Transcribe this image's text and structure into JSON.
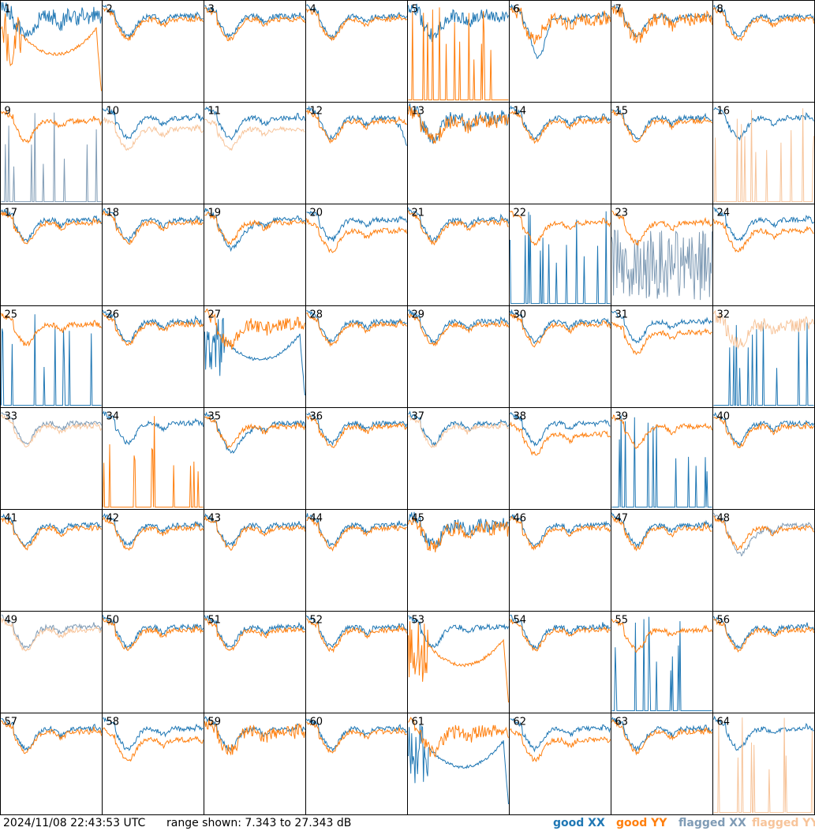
{
  "footer": {
    "timestamp": "2024/11/08 22:43:53 UTC",
    "range_text": "range shown: 7.343 to 27.343 dB",
    "legend": {
      "good_xx": "good XX",
      "good_yy": "good YY",
      "flagged_xx": "flagged XX",
      "flagged_yy": "flagged YY"
    }
  },
  "colors": {
    "good_xx": "#1f77b4",
    "good_yy": "#ff7f0e",
    "flagged_xx": "#7f9bb5",
    "flagged_yy": "#f7c49a",
    "frame": "#000000"
  },
  "chart_data": {
    "type": "line",
    "layout": "small-multiples",
    "rows": 8,
    "cols": 8,
    "ylim": [
      7.343,
      27.343
    ],
    "yunit": "dB",
    "panels": [
      {
        "id": 1,
        "xx": "good",
        "yy": "good",
        "xx_style": "wide",
        "yy_style": "sag"
      },
      {
        "id": 2,
        "xx": "good",
        "yy": "good",
        "xx_style": "normal",
        "yy_style": "normal"
      },
      {
        "id": 3,
        "xx": "good",
        "yy": "good",
        "xx_style": "normal",
        "yy_style": "normal"
      },
      {
        "id": 4,
        "xx": "good",
        "yy": "good",
        "xx_style": "normal",
        "yy_style": "normal"
      },
      {
        "id": 5,
        "xx": "good",
        "yy": "good",
        "xx_style": "noisy",
        "yy_style": "spikes"
      },
      {
        "id": 6,
        "xx": "good",
        "yy": "good",
        "xx_style": "dip",
        "yy_style": "noisy"
      },
      {
        "id": 7,
        "xx": "good",
        "yy": "good",
        "xx_style": "normal",
        "yy_style": "noisy"
      },
      {
        "id": 8,
        "xx": "good",
        "yy": "good",
        "xx_style": "normal",
        "yy_style": "normal"
      },
      {
        "id": 9,
        "xx": "flagged",
        "yy": "good",
        "xx_style": "spikes",
        "yy_style": "normal"
      },
      {
        "id": 10,
        "xx": "good",
        "yy": "flagged",
        "xx_style": "normal",
        "yy_style": "low"
      },
      {
        "id": 11,
        "xx": "good",
        "yy": "flagged",
        "xx_style": "normal",
        "yy_style": "low"
      },
      {
        "id": 12,
        "xx": "good",
        "yy": "good",
        "xx_style": "drop",
        "yy_style": "normal"
      },
      {
        "id": 13,
        "xx": "good",
        "yy": "good",
        "xx_style": "noisy",
        "yy_style": "noisy"
      },
      {
        "id": 14,
        "xx": "good",
        "yy": "good",
        "xx_style": "normal",
        "yy_style": "normal"
      },
      {
        "id": 15,
        "xx": "good",
        "yy": "good",
        "xx_style": "normal",
        "yy_style": "normal"
      },
      {
        "id": 16,
        "xx": "good",
        "yy": "flagged",
        "xx_style": "normal",
        "yy_style": "spikes"
      },
      {
        "id": 17,
        "xx": "good",
        "yy": "good",
        "xx_style": "normal",
        "yy_style": "normal"
      },
      {
        "id": 18,
        "xx": "good",
        "yy": "good",
        "xx_style": "normal",
        "yy_style": "normal"
      },
      {
        "id": 19,
        "xx": "good",
        "yy": "good",
        "xx_style": "deep",
        "yy_style": "normal"
      },
      {
        "id": 20,
        "xx": "good",
        "yy": "good",
        "xx_style": "normal",
        "yy_style": "low"
      },
      {
        "id": 21,
        "xx": "good",
        "yy": "good",
        "xx_style": "normal",
        "yy_style": "normal"
      },
      {
        "id": 22,
        "xx": "good",
        "yy": "good",
        "xx_style": "spikes",
        "yy_style": "normal"
      },
      {
        "id": 23,
        "xx": "flagged",
        "yy": "good",
        "xx_style": "chaos",
        "yy_style": "normal"
      },
      {
        "id": 24,
        "xx": "good",
        "yy": "good",
        "xx_style": "normal",
        "yy_style": "low"
      },
      {
        "id": 25,
        "xx": "good",
        "yy": "good",
        "xx_style": "spikes",
        "yy_style": "normal"
      },
      {
        "id": 26,
        "xx": "good",
        "yy": "good",
        "xx_style": "normal",
        "yy_style": "normal"
      },
      {
        "id": 27,
        "xx": "good",
        "yy": "good",
        "xx_style": "sag",
        "yy_style": "noisy"
      },
      {
        "id": 28,
        "xx": "good",
        "yy": "good",
        "xx_style": "normal",
        "yy_style": "normal"
      },
      {
        "id": 29,
        "xx": "good",
        "yy": "good",
        "xx_style": "normal",
        "yy_style": "normal"
      },
      {
        "id": 30,
        "xx": "good",
        "yy": "good",
        "xx_style": "normal",
        "yy_style": "normal"
      },
      {
        "id": 31,
        "xx": "good",
        "yy": "good",
        "xx_style": "normal",
        "yy_style": "low"
      },
      {
        "id": 32,
        "xx": "good",
        "yy": "flagged",
        "xx_style": "spikes",
        "yy_style": "noisy"
      },
      {
        "id": 33,
        "xx": "flagged",
        "yy": "flagged",
        "xx_style": "normal",
        "yy_style": "normal"
      },
      {
        "id": 34,
        "xx": "good",
        "yy": "good",
        "xx_style": "normal",
        "yy_style": "spikes"
      },
      {
        "id": 35,
        "xx": "good",
        "yy": "good",
        "xx_style": "deep",
        "yy_style": "normal"
      },
      {
        "id": 36,
        "xx": "good",
        "yy": "good",
        "xx_style": "normal",
        "yy_style": "normal"
      },
      {
        "id": 37,
        "xx": "good",
        "yy": "flagged",
        "xx_style": "normal",
        "yy_style": "normal"
      },
      {
        "id": 38,
        "xx": "good",
        "yy": "good",
        "xx_style": "normal",
        "yy_style": "low"
      },
      {
        "id": 39,
        "xx": "good",
        "yy": "good",
        "xx_style": "spikes",
        "yy_style": "normal"
      },
      {
        "id": 40,
        "xx": "good",
        "yy": "good",
        "xx_style": "normal",
        "yy_style": "normal"
      },
      {
        "id": 41,
        "xx": "good",
        "yy": "good",
        "xx_style": "normal",
        "yy_style": "normal"
      },
      {
        "id": 42,
        "xx": "good",
        "yy": "good",
        "xx_style": "normal",
        "yy_style": "normal"
      },
      {
        "id": 43,
        "xx": "good",
        "yy": "good",
        "xx_style": "normal",
        "yy_style": "normal"
      },
      {
        "id": 44,
        "xx": "good",
        "yy": "good",
        "xx_style": "normal",
        "yy_style": "normal"
      },
      {
        "id": 45,
        "xx": "good",
        "yy": "good",
        "xx_style": "noisy",
        "yy_style": "noisy"
      },
      {
        "id": 46,
        "xx": "good",
        "yy": "good",
        "xx_style": "normal",
        "yy_style": "normal"
      },
      {
        "id": 47,
        "xx": "good",
        "yy": "good",
        "xx_style": "normal",
        "yy_style": "normal"
      },
      {
        "id": 48,
        "xx": "flagged",
        "yy": "good",
        "xx_style": "deep",
        "yy_style": "normal"
      },
      {
        "id": 49,
        "xx": "flagged",
        "yy": "flagged",
        "xx_style": "normal",
        "yy_style": "normal"
      },
      {
        "id": 50,
        "xx": "good",
        "yy": "good",
        "xx_style": "normal",
        "yy_style": "normal"
      },
      {
        "id": 51,
        "xx": "good",
        "yy": "good",
        "xx_style": "normal",
        "yy_style": "normal"
      },
      {
        "id": 52,
        "xx": "good",
        "yy": "good",
        "xx_style": "normal",
        "yy_style": "normal"
      },
      {
        "id": 53,
        "xx": "good",
        "yy": "good",
        "xx_style": "normal",
        "yy_style": "sag"
      },
      {
        "id": 54,
        "xx": "good",
        "yy": "good",
        "xx_style": "normal",
        "yy_style": "normal"
      },
      {
        "id": 55,
        "xx": "good",
        "yy": "good",
        "xx_style": "spikes",
        "yy_style": "normal"
      },
      {
        "id": 56,
        "xx": "good",
        "yy": "good",
        "xx_style": "normal",
        "yy_style": "normal"
      },
      {
        "id": 57,
        "xx": "good",
        "yy": "good",
        "xx_style": "normal",
        "yy_style": "normal"
      },
      {
        "id": 58,
        "xx": "good",
        "yy": "good",
        "xx_style": "normal",
        "yy_style": "low"
      },
      {
        "id": 59,
        "xx": "good",
        "yy": "good",
        "xx_style": "normal",
        "yy_style": "noisy"
      },
      {
        "id": 60,
        "xx": "good",
        "yy": "good",
        "xx_style": "normal",
        "yy_style": "normal"
      },
      {
        "id": 61,
        "xx": "good",
        "yy": "good",
        "xx_style": "sag",
        "yy_style": "noisy"
      },
      {
        "id": 62,
        "xx": "good",
        "yy": "good",
        "xx_style": "normal",
        "yy_style": "low"
      },
      {
        "id": 63,
        "xx": "good",
        "yy": "good",
        "xx_style": "normal",
        "yy_style": "normal"
      },
      {
        "id": 64,
        "xx": "good",
        "yy": "flagged",
        "xx_style": "normal",
        "yy_style": "spikes"
      }
    ]
  }
}
